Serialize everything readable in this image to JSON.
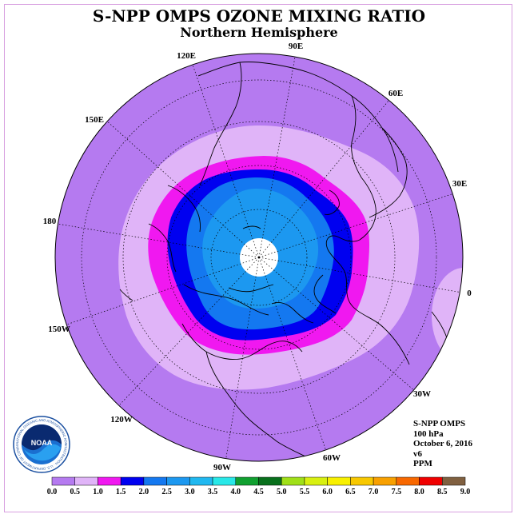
{
  "title": "S-NPP OMPS OZONE MIXING RATIO",
  "subtitle": "Northern Hemisphere",
  "longitude_labels": [
    "90E",
    "60E",
    "30E",
    "0",
    "30W",
    "60W",
    "90W",
    "120W",
    "150W",
    "180",
    "150E",
    "120E"
  ],
  "info": {
    "instrument": "S-NPP OMPS",
    "level": "100 hPa",
    "date": "October 6, 2016",
    "version": "v6",
    "units": "PPM"
  },
  "logo": {
    "text": "NOAA",
    "ring_text": "NATIONAL OCEANIC AND ATMOSPHERIC ADMINISTRATION · U.S. DEPARTMENT OF COMMERCE"
  },
  "colorbar": {
    "ticks": [
      "0.0",
      "0.5",
      "1.0",
      "1.5",
      "2.0",
      "2.5",
      "3.0",
      "3.5",
      "4.0",
      "4.5",
      "5.0",
      "5.5",
      "6.0",
      "6.5",
      "7.0",
      "7.5",
      "8.0",
      "8.5",
      "9.0"
    ],
    "colors": [
      "#b57af0",
      "#e0b4f8",
      "#f018f0",
      "#0000f0",
      "#1478f0",
      "#1c98f0",
      "#20b8f0",
      "#28e8e8",
      "#10a030",
      "#08701c",
      "#a0e018",
      "#d8f010",
      "#f8f000",
      "#f8c800",
      "#f8a000",
      "#f86800",
      "#f00000",
      "#806040"
    ]
  }
}
